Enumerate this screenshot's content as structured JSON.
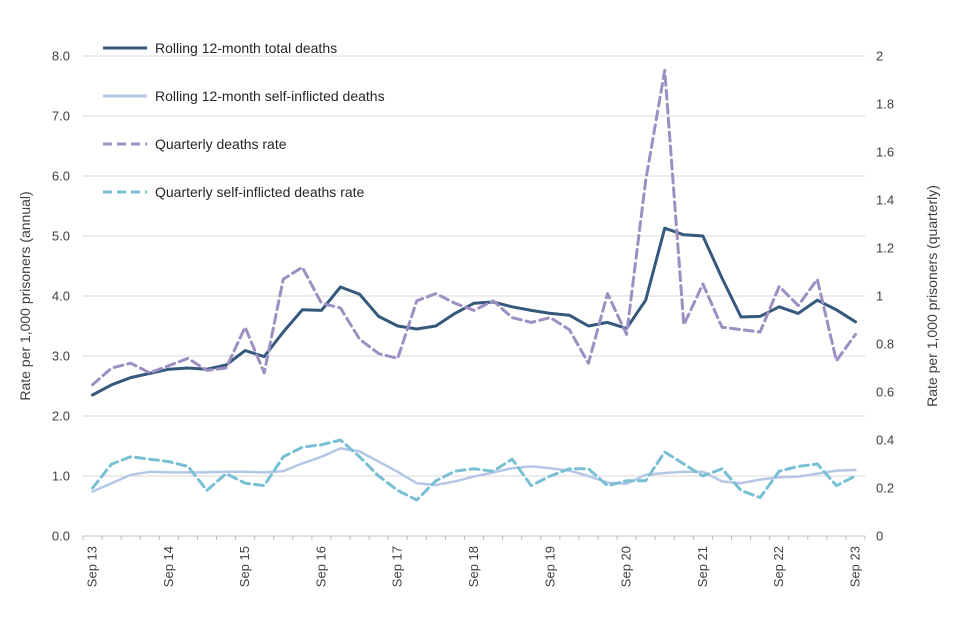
{
  "chart_data": {
    "type": "line",
    "n_points": 41,
    "grid_color": "#D9D9D9",
    "axis_color": "#BFBFBF",
    "text_color": "#404040",
    "x_axis": {
      "tick_labels": [
        "Sep 13",
        "Sep 14",
        "Sep 15",
        "Sep 16",
        "Sep 17",
        "Sep 18",
        "Sep 19",
        "Sep 20",
        "Sep 21",
        "Sep 22",
        "Sep 23"
      ],
      "points_per_label": 4,
      "minor_ticks": "quarterly"
    },
    "left_axis": {
      "label": "Rate per 1,000 prisoners (annual)",
      "min": 0,
      "max": 8,
      "tick_step": 1,
      "tick_labels": [
        "0.0",
        "1.0",
        "2.0",
        "3.0",
        "4.0",
        "5.0",
        "6.0",
        "7.0",
        "8.0"
      ]
    },
    "right_axis": {
      "label": "Rate per 1,000 prisoners (quarterly)",
      "min": 0,
      "max": 2,
      "tick_step": 0.2,
      "tick_labels": [
        "0",
        "0.2",
        "0.4",
        "0.6",
        "0.8",
        "1",
        "1.2",
        "1.4",
        "1.6",
        "1.8",
        "2"
      ]
    },
    "series": [
      {
        "name": "Rolling 12-month total deaths",
        "axis": "left",
        "line_style": "solid",
        "color": "#35587D",
        "stroke_width": 3,
        "values": [
          2.35,
          2.52,
          2.64,
          2.71,
          2.78,
          2.8,
          2.78,
          2.85,
          3.09,
          2.99,
          3.4,
          3.77,
          3.76,
          4.15,
          4.03,
          3.66,
          3.5,
          3.45,
          3.5,
          3.71,
          3.88,
          3.9,
          3.82,
          3.76,
          3.71,
          3.68,
          3.5,
          3.56,
          3.46,
          3.93,
          5.13,
          5.02,
          5.0,
          4.3,
          3.65,
          3.66,
          3.82,
          3.71,
          3.93,
          3.77,
          3.57
        ]
      },
      {
        "name": "Rolling 12-month self-inflicted deaths",
        "axis": "left",
        "line_style": "solid",
        "color": "#B4C7E7",
        "stroke_width": 2.5,
        "values": [
          0.74,
          0.88,
          1.02,
          1.07,
          1.06,
          1.06,
          1.06,
          1.07,
          1.07,
          1.06,
          1.08,
          1.21,
          1.32,
          1.46,
          1.41,
          1.24,
          1.07,
          0.88,
          0.85,
          0.91,
          0.99,
          1.06,
          1.13,
          1.16,
          1.13,
          1.09,
          1.0,
          0.89,
          0.87,
          1.02,
          1.05,
          1.07,
          1.07,
          0.91,
          0.88,
          0.94,
          0.98,
          0.99,
          1.04,
          1.09,
          1.1
        ]
      },
      {
        "name": "Quarterly deaths rate",
        "axis": "right",
        "line_style": "dashed",
        "color": "#9E8FC2",
        "stroke_width": 3,
        "values": [
          0.63,
          0.7,
          0.72,
          0.68,
          0.71,
          0.74,
          0.69,
          0.7,
          0.87,
          0.68,
          1.07,
          1.12,
          0.97,
          0.95,
          0.82,
          0.76,
          0.74,
          0.98,
          1.01,
          0.97,
          0.94,
          0.98,
          0.91,
          0.89,
          0.91,
          0.86,
          0.72,
          1.01,
          0.84,
          1.48,
          1.94,
          0.88,
          1.05,
          0.87,
          0.86,
          0.85,
          1.04,
          0.96,
          1.07,
          0.73,
          0.84
        ]
      },
      {
        "name": "Quarterly self-inflicted deaths rate",
        "axis": "right",
        "line_style": "dashed",
        "color": "#79C0D4",
        "stroke_width": 3,
        "values": [
          0.2,
          0.3,
          0.33,
          0.32,
          0.31,
          0.29,
          0.19,
          0.26,
          0.22,
          0.21,
          0.33,
          0.37,
          0.38,
          0.4,
          0.33,
          0.25,
          0.19,
          0.15,
          0.23,
          0.27,
          0.28,
          0.27,
          0.32,
          0.21,
          0.25,
          0.28,
          0.28,
          0.21,
          0.23,
          0.23,
          0.35,
          0.3,
          0.25,
          0.28,
          0.19,
          0.16,
          0.27,
          0.29,
          0.3,
          0.21,
          0.25
        ]
      }
    ]
  }
}
